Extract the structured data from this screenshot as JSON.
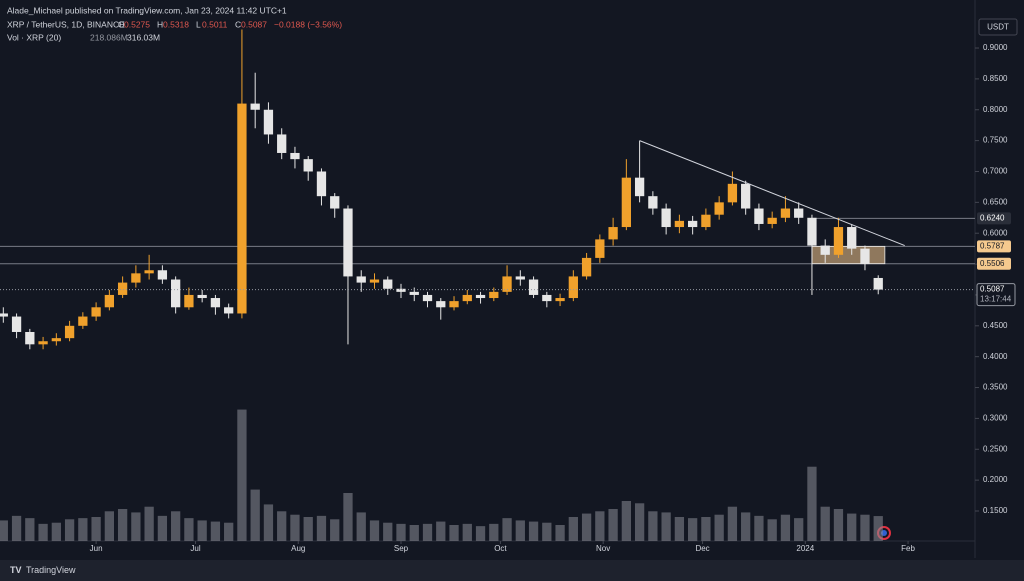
{
  "header": {
    "publisher": "Alade_Michael published on TradingView.com, Jan 23, 2024 11:42 UTC+1",
    "ohlc_letters": [
      "O",
      "H",
      "L",
      "C"
    ],
    "change": "−0.0188 (−3.56%)",
    "volume_title": "Vol · XRP (20)",
    "volume_value": "218.086M",
    "volume_ma": "316.03M",
    "currency": "USDT",
    "countdown": "13:17:44",
    "footer": "TradingView"
  },
  "chart_data": {
    "type": "candlestick",
    "title": "XRP / TetherUS, 1D, BINANCE",
    "x": [
      3,
      7,
      11,
      15,
      19,
      23,
      27,
      31,
      35,
      39,
      43,
      47,
      51,
      55,
      59,
      63,
      67,
      71,
      75,
      79,
      83,
      87,
      91,
      95,
      99,
      103,
      107,
      111,
      115,
      119,
      123,
      127,
      131,
      135,
      139,
      143,
      147,
      151,
      155,
      159,
      163,
      167,
      171,
      175,
      179,
      183,
      187,
      191,
      195,
      199,
      203,
      207,
      211,
      215,
      219,
      223,
      227,
      231,
      235,
      239,
      243,
      247,
      251,
      255,
      259,
      263,
      267
    ],
    "open": [
      0.47,
      0.465,
      0.44,
      0.42,
      0.425,
      0.43,
      0.45,
      0.465,
      0.48,
      0.5,
      0.52,
      0.535,
      0.54,
      0.525,
      0.48,
      0.5,
      0.495,
      0.48,
      0.47,
      0.81,
      0.8,
      0.76,
      0.73,
      0.72,
      0.7,
      0.66,
      0.64,
      0.53,
      0.52,
      0.525,
      0.51,
      0.505,
      0.5,
      0.49,
      0.48,
      0.49,
      0.5,
      0.495,
      0.505,
      0.53,
      0.525,
      0.5,
      0.49,
      0.495,
      0.53,
      0.56,
      0.59,
      0.61,
      0.69,
      0.66,
      0.64,
      0.61,
      0.62,
      0.61,
      0.63,
      0.65,
      0.68,
      0.64,
      0.615,
      0.625,
      0.64,
      0.625,
      0.58,
      0.565,
      0.61,
      0.575,
      0.5275
    ],
    "high": [
      0.48,
      0.47,
      0.445,
      0.432,
      0.438,
      0.458,
      0.472,
      0.488,
      0.508,
      0.53,
      0.548,
      0.565,
      0.548,
      0.53,
      0.512,
      0.508,
      0.5,
      0.486,
      0.93,
      0.86,
      0.812,
      0.77,
      0.74,
      0.725,
      0.705,
      0.665,
      0.645,
      0.54,
      0.535,
      0.53,
      0.518,
      0.512,
      0.505,
      0.495,
      0.498,
      0.508,
      0.505,
      0.512,
      0.548,
      0.54,
      0.53,
      0.505,
      0.502,
      0.54,
      0.568,
      0.598,
      0.625,
      0.72,
      0.75,
      0.668,
      0.648,
      0.63,
      0.628,
      0.64,
      0.66,
      0.7,
      0.685,
      0.648,
      0.635,
      0.66,
      0.65,
      0.63,
      0.59,
      0.625,
      0.615,
      0.58,
      0.5318
    ],
    "low": [
      0.455,
      0.43,
      0.412,
      0.412,
      0.418,
      0.425,
      0.445,
      0.458,
      0.475,
      0.495,
      0.512,
      0.525,
      0.518,
      0.47,
      0.476,
      0.488,
      0.468,
      0.462,
      0.462,
      0.77,
      0.745,
      0.72,
      0.705,
      0.685,
      0.645,
      0.625,
      0.42,
      0.505,
      0.51,
      0.5,
      0.495,
      0.49,
      0.48,
      0.46,
      0.475,
      0.485,
      0.486,
      0.49,
      0.5,
      0.515,
      0.495,
      0.48,
      0.482,
      0.49,
      0.525,
      0.552,
      0.58,
      0.605,
      0.65,
      0.63,
      0.598,
      0.6,
      0.598,
      0.605,
      0.622,
      0.645,
      0.63,
      0.605,
      0.608,
      0.618,
      0.615,
      0.5,
      0.552,
      0.56,
      0.565,
      0.54,
      0.5011
    ],
    "close": [
      0.465,
      0.44,
      0.42,
      0.425,
      0.43,
      0.45,
      0.465,
      0.48,
      0.5,
      0.52,
      0.535,
      0.54,
      0.525,
      0.48,
      0.5,
      0.495,
      0.48,
      0.47,
      0.81,
      0.8,
      0.76,
      0.73,
      0.72,
      0.7,
      0.66,
      0.64,
      0.53,
      0.52,
      0.525,
      0.51,
      0.505,
      0.5,
      0.49,
      0.48,
      0.49,
      0.5,
      0.495,
      0.505,
      0.53,
      0.525,
      0.5,
      0.49,
      0.495,
      0.53,
      0.56,
      0.59,
      0.61,
      0.69,
      0.66,
      0.64,
      0.61,
      0.62,
      0.61,
      0.63,
      0.65,
      0.68,
      0.64,
      0.615,
      0.625,
      0.64,
      0.625,
      0.58,
      0.565,
      0.61,
      0.575,
      0.55,
      0.5087
    ],
    "volume": [
      180,
      220,
      200,
      150,
      160,
      190,
      200,
      210,
      260,
      280,
      250,
      300,
      220,
      260,
      200,
      180,
      170,
      160,
      1150,
      450,
      320,
      260,
      230,
      210,
      220,
      190,
      420,
      250,
      180,
      160,
      150,
      140,
      150,
      170,
      140,
      150,
      130,
      150,
      200,
      180,
      170,
      160,
      140,
      210,
      240,
      260,
      280,
      350,
      330,
      260,
      250,
      210,
      200,
      210,
      230,
      300,
      250,
      220,
      190,
      230,
      200,
      650,
      300,
      280,
      240,
      230,
      218.086
    ],
    "up_color": "#f0a12c",
    "down_color": "#e6e6e6",
    "volume_color": "#8a8d96",
    "xlim": [
      2,
      296.2
    ],
    "ylim": [
      0.1014,
      0.9778
    ],
    "volume_lim": [
      0,
      1400
    ],
    "xticks": [
      {
        "value": 31,
        "label": "Jun"
      },
      {
        "value": 61,
        "label": "Jul"
      },
      {
        "value": 92,
        "label": "Aug"
      },
      {
        "value": 123,
        "label": "Sep"
      },
      {
        "value": 153,
        "label": "Oct"
      },
      {
        "value": 184,
        "label": "Nov"
      },
      {
        "value": 214,
        "label": "Dec"
      },
      {
        "value": 245,
        "label": "2024"
      },
      {
        "value": 276,
        "label": "Feb"
      }
    ],
    "yticks": [
      {
        "value": 0.9,
        "label": "0.9000"
      },
      {
        "value": 0.85,
        "label": "0.8500"
      },
      {
        "value": 0.8,
        "label": "0.8000"
      },
      {
        "value": 0.75,
        "label": "0.7500"
      },
      {
        "value": 0.7,
        "label": "0.7000"
      },
      {
        "value": 0.65,
        "label": "0.6500"
      },
      {
        "value": 0.6,
        "label": "0.6000"
      },
      {
        "value": 0.55,
        "label": "0.5500"
      },
      {
        "value": 0.5,
        "label": "0.5000"
      },
      {
        "value": 0.45,
        "label": "0.4500"
      },
      {
        "value": 0.4,
        "label": "0.4000"
      },
      {
        "value": 0.35,
        "label": "0.3500"
      },
      {
        "value": 0.3,
        "label": "0.3000"
      },
      {
        "value": 0.25,
        "label": "0.2500"
      },
      {
        "value": 0.2,
        "label": "0.2000"
      },
      {
        "value": 0.15,
        "label": "0.1500"
      }
    ],
    "levels": [
      {
        "value": 0.624,
        "label": "0.6240"
      },
      {
        "value": 0.5787,
        "label": "0.5787"
      },
      {
        "value": 0.5506,
        "label": "0.5506"
      }
    ],
    "last_price": {
      "value": 0.5087,
      "label": "0.5087"
    },
    "trendline": {
      "x": [
        195,
        275
      ],
      "y": [
        0.75,
        0.58
      ]
    },
    "zone": {
      "x": [
        247,
        269
      ],
      "y": [
        0.5506,
        0.5787
      ]
    }
  }
}
